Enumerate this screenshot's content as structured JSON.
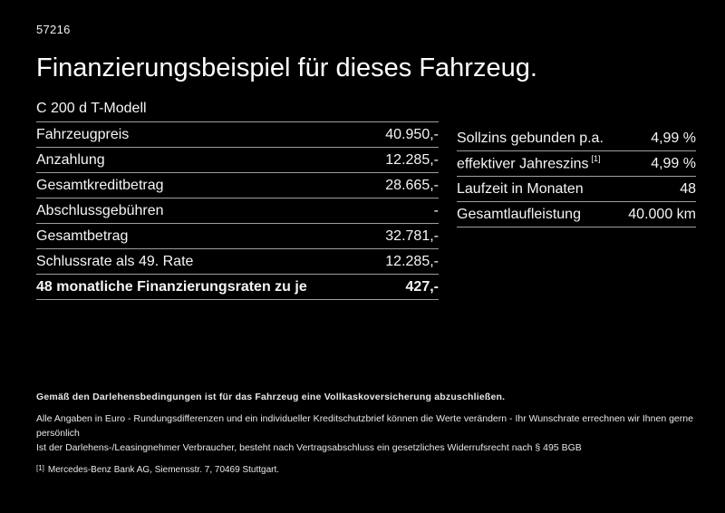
{
  "page": {
    "doc_id": "57216",
    "title": "Finanzierungsbeispiel für dieses Fahrzeug.",
    "model": "C 200 d T-Modell"
  },
  "finance_table": {
    "rows": [
      {
        "label": "Fahrzeugpreis",
        "value": "40.950,-"
      },
      {
        "label": "Anzahlung",
        "value": "12.285,-"
      },
      {
        "label": "Gesamtkreditbetrag",
        "value": "28.665,-"
      },
      {
        "label": "Abschlussgebühren",
        "value": "-"
      },
      {
        "label": "Gesamtbetrag",
        "value": "32.781,-"
      },
      {
        "label": "Schlussrate als 49. Rate",
        "value": "12.285,-"
      },
      {
        "label": "48 monatliche Finanzierungsraten zu je",
        "value": "427,-"
      }
    ]
  },
  "conditions_table": {
    "rows": [
      {
        "label": "Sollzins gebunden p.a.",
        "value": "4,99 %"
      },
      {
        "label": "effektiver Jahreszins",
        "sup": "[1]",
        "value": "4,99 %"
      },
      {
        "label": "Laufzeit in Monaten",
        "value": "48"
      },
      {
        "label": "Gesamtlaufleistung",
        "value": "40.000 km"
      }
    ]
  },
  "footer": {
    "insurance_note": "Gemäß den Darlehensbedingungen ist für das Fahrzeug eine Vollkaskoversicherung abzuschließen.",
    "disclaimer_line1": "Alle Angaben in Euro - Rundungsdifferenzen und ein individueller Kreditschutzbrief können die Werte verändern - Ihr Wunschrate errechnen wir Ihnen gerne persönlich",
    "disclaimer_line2": "Ist der Darlehens-/Leasingnehmer Verbraucher, besteht nach Vertragsabschluss ein gesetzliches Widerrufsrecht nach § 495 BGB",
    "footnote_marker": "[1]",
    "footnote_text": "Mercedes-Benz Bank AG, Siemensstr. 7, 70469 Stuttgart."
  },
  "colors": {
    "background": "#000000",
    "text": "#f5f5f5",
    "divider": "#9e9e9e"
  }
}
